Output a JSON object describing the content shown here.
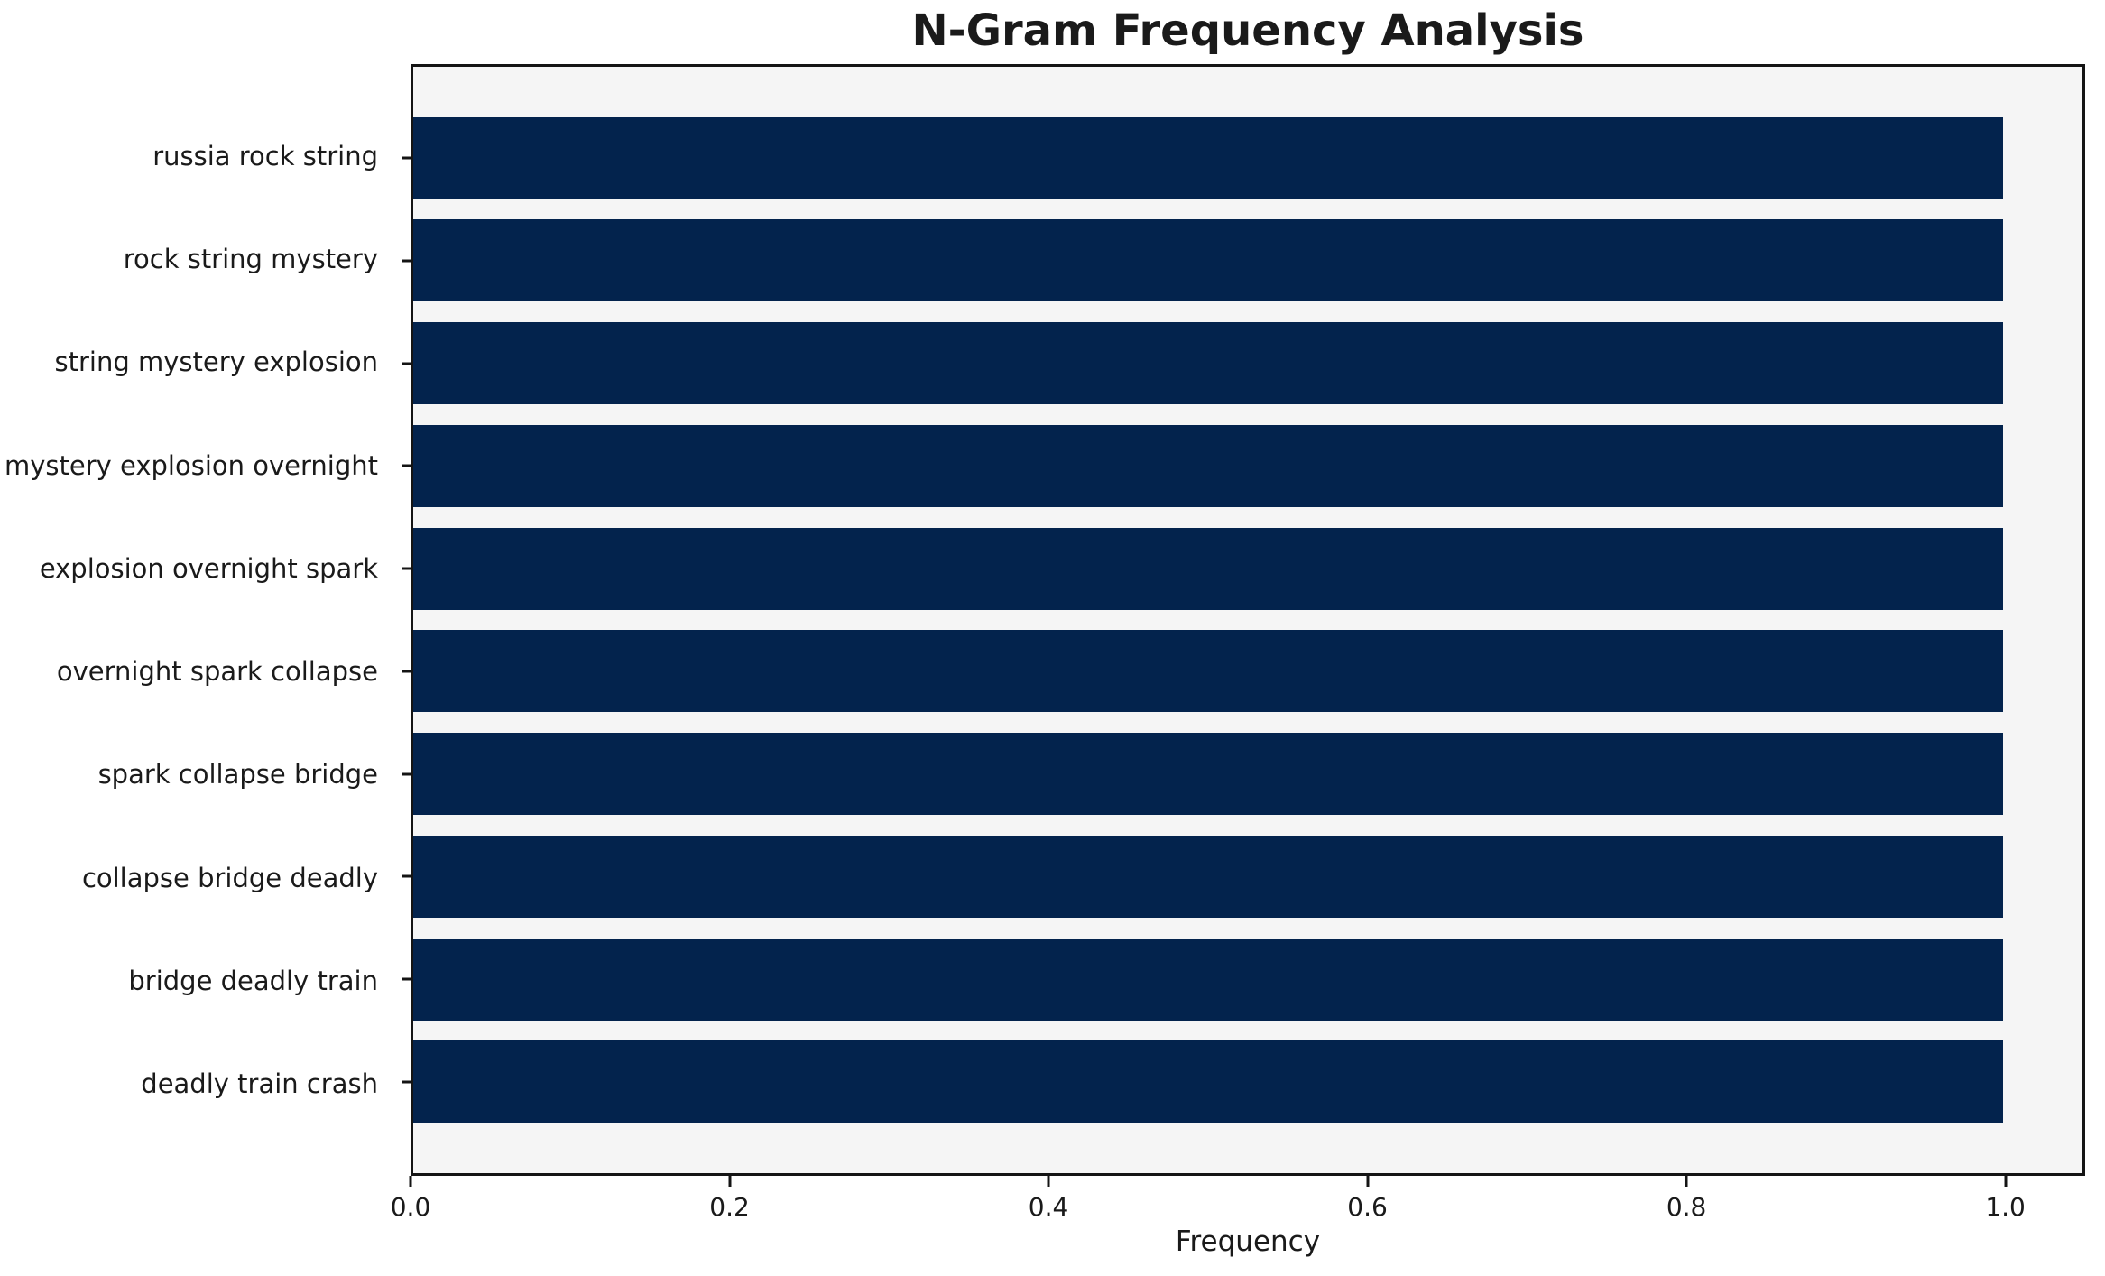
{
  "figure": {
    "title": "N-Gram Frequency Analysis",
    "xlabel": "Frequency"
  },
  "colors": {
    "bar": "#03234d",
    "plot_background": "#f5f5f5",
    "figure_background": "#ffffff",
    "spine": "#141414",
    "text": "#1a1a1a"
  },
  "chart_data": {
    "type": "bar",
    "orientation": "horizontal",
    "title": "N-Gram Frequency Analysis",
    "xlabel": "Frequency",
    "ylabel": "",
    "categories": [
      "russia rock string",
      "rock string mystery",
      "string mystery explosion",
      "mystery explosion overnight",
      "explosion overnight spark",
      "overnight spark collapse",
      "spark collapse bridge",
      "collapse bridge deadly",
      "bridge deadly train",
      "deadly train crash"
    ],
    "values": [
      1.0,
      1.0,
      1.0,
      1.0,
      1.0,
      1.0,
      1.0,
      1.0,
      1.0,
      1.0
    ],
    "xlim": [
      0,
      1.05
    ],
    "xticks": [
      0.0,
      0.2,
      0.4,
      0.6,
      0.8,
      1.0
    ],
    "xtick_labels": [
      "0.0",
      "0.2",
      "0.4",
      "0.6",
      "0.8",
      "1.0"
    ],
    "grid": false,
    "legend": null,
    "bar_height_fraction": 0.8,
    "axis_pad_fraction": 0.0362
  }
}
